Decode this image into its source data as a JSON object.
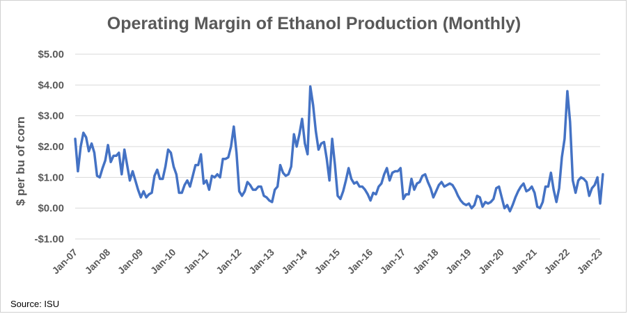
{
  "chart_data": {
    "type": "line",
    "title": "Operating Margin of Ethanol Production (Monthly)",
    "ylabel": "$ per bu of corn",
    "xlabel": "",
    "source": "Source: ISU",
    "ylim": [
      -1,
      5
    ],
    "yticks": [
      5,
      4,
      3,
      2,
      1,
      0,
      -1
    ],
    "ytick_labels": [
      "$5.00",
      "$4.00",
      "$3.00",
      "$2.00",
      "$1.00",
      "$0.00",
      "-$1.00"
    ],
    "xtick_labels": [
      "Jan-07",
      "Jan-08",
      "Jan-09",
      "Jan-10",
      "Jan-11",
      "Jan-12",
      "Jan-13",
      "Jan-14",
      "Jan-15",
      "Jan-16",
      "Jan-17",
      "Jan-18",
      "Jan-19",
      "Jan-20",
      "Jan-21",
      "Jan-22",
      "Jan-23"
    ],
    "grid": true,
    "line_color": "#4472C4",
    "grid_color": "#d9d9d9",
    "series": [
      {
        "x_start": "Jan-07",
        "frequency": "monthly",
        "values": [
          2.25,
          1.2,
          2.0,
          2.45,
          2.3,
          1.85,
          2.1,
          1.8,
          1.05,
          1.0,
          1.3,
          1.55,
          2.05,
          1.5,
          1.7,
          1.7,
          1.8,
          1.1,
          1.9,
          1.4,
          0.9,
          1.2,
          0.9,
          0.6,
          0.35,
          0.55,
          0.35,
          0.45,
          0.5,
          1.05,
          1.25,
          0.95,
          0.95,
          1.35,
          1.9,
          1.8,
          1.35,
          1.1,
          0.5,
          0.5,
          0.75,
          0.9,
          0.7,
          1.05,
          1.4,
          1.4,
          1.75,
          0.8,
          0.9,
          0.6,
          1.05,
          1.0,
          1.1,
          1.0,
          1.6,
          1.6,
          1.65,
          2.0,
          2.65,
          1.8,
          0.55,
          0.4,
          0.55,
          0.85,
          0.75,
          0.6,
          0.6,
          0.7,
          0.7,
          0.4,
          0.35,
          0.25,
          0.2,
          0.6,
          0.7,
          1.4,
          1.15,
          1.05,
          1.1,
          1.35,
          2.4,
          2.0,
          2.4,
          2.9,
          2.1,
          1.75,
          3.95,
          3.35,
          2.5,
          1.9,
          2.1,
          2.15,
          1.6,
          0.9,
          2.25,
          1.4,
          0.4,
          0.3,
          0.55,
          0.9,
          1.3,
          0.95,
          0.8,
          0.85,
          0.7,
          0.7,
          0.6,
          0.45,
          0.25,
          0.5,
          0.45,
          0.7,
          0.8,
          1.1,
          1.3,
          0.9,
          1.15,
          1.2,
          1.2,
          1.3,
          0.3,
          0.45,
          0.45,
          0.95,
          0.6,
          0.8,
          0.85,
          1.05,
          1.1,
          0.85,
          0.65,
          0.35,
          0.55,
          0.75,
          0.85,
          0.7,
          0.75,
          0.8,
          0.75,
          0.6,
          0.4,
          0.25,
          0.15,
          0.1,
          0.15,
          0.0,
          0.1,
          0.4,
          0.35,
          0.05,
          0.2,
          0.15,
          0.2,
          0.3,
          0.65,
          0.7,
          0.35,
          0.0,
          0.1,
          -0.1,
          0.1,
          0.35,
          0.55,
          0.7,
          0.8,
          0.55,
          0.6,
          0.7,
          0.5,
          0.05,
          0.0,
          0.2,
          0.7,
          0.7,
          1.15,
          0.6,
          0.2,
          0.65,
          1.65,
          2.25,
          3.8,
          2.8,
          0.9,
          0.5,
          0.9,
          1.0,
          0.95,
          0.85,
          0.4,
          0.65,
          0.75,
          1.0,
          0.15,
          1.1
        ]
      }
    ]
  }
}
